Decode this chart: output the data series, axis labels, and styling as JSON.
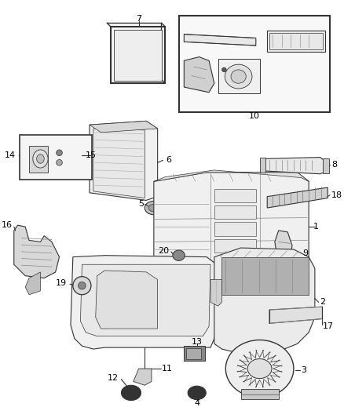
{
  "bg_color": "#ffffff",
  "line_color": "#333333",
  "fig_width": 4.38,
  "fig_height": 5.33,
  "dpi": 100,
  "label_fs": 7.5
}
